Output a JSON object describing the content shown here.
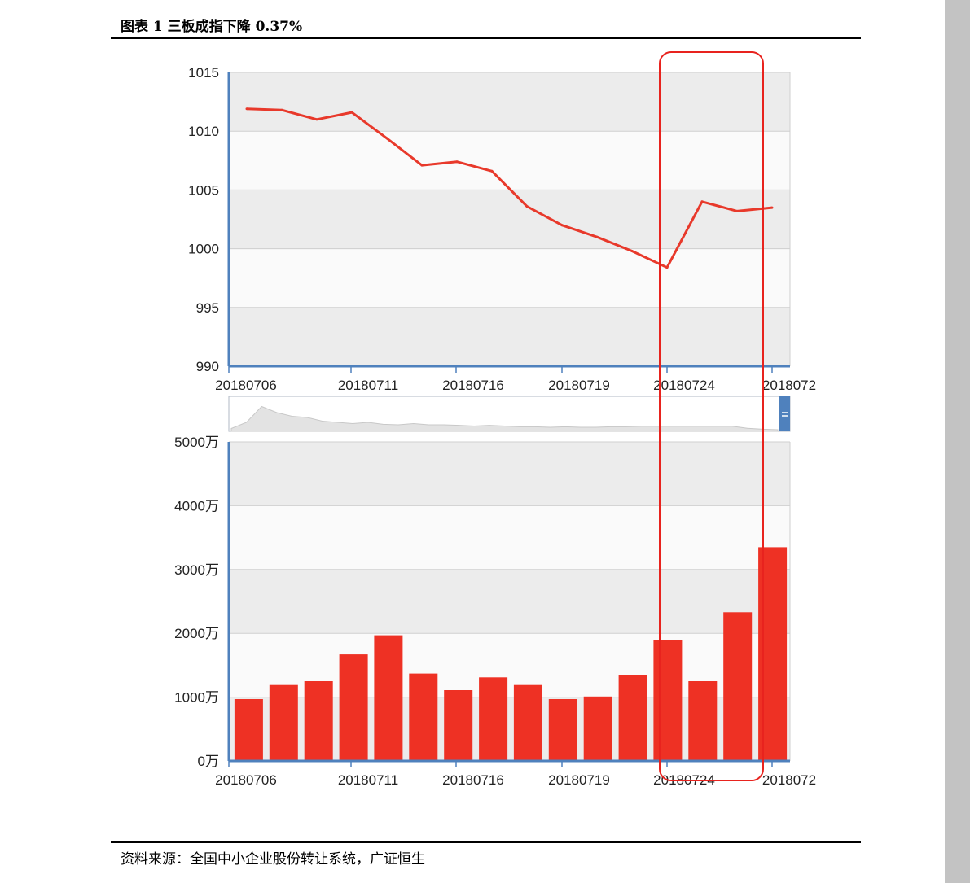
{
  "figure": {
    "title": "图表 1  三板成指下降 0.37%",
    "source": "资料来源：全国中小企业股份转让系统，广证恒生"
  },
  "colors": {
    "line": "#e8392b",
    "bar": "#ee3124",
    "axis": "#4f81bd",
    "band_dark": "#ececec",
    "band_light": "#fafafa",
    "highlight_box": "#e8231e",
    "navigator_fill": "#e3e3e3",
    "navigator_handle": "#4f81bd"
  },
  "chart_data": [
    {
      "type": "line",
      "title": "",
      "xlabel": "",
      "ylabel": "",
      "ylim": [
        990,
        1015
      ],
      "yticks": [
        "990",
        "995",
        "1000",
        "1005",
        "1010",
        "1015"
      ],
      "xticks": [
        "20180706",
        "20180711",
        "20180716",
        "20180719",
        "20180724",
        "2018072"
      ],
      "series": [
        {
          "values": [
            1011.9,
            1011.8,
            1011.0,
            1011.6,
            1009.4,
            1007.1,
            1007.4,
            1006.6,
            1003.6,
            1002.0,
            1001.0,
            999.8,
            998.4,
            1004.0,
            1003.2,
            1003.5
          ]
        }
      ],
      "grid": true,
      "legend": "none"
    },
    {
      "type": "bar",
      "title": "",
      "xlabel": "",
      "ylabel": "",
      "ylim": [
        0,
        5000
      ],
      "yticks": [
        "0万",
        "1000万",
        "2000万",
        "3000万",
        "4000万",
        "5000万"
      ],
      "xticks": [
        "20180706",
        "20180711",
        "20180716",
        "20180719",
        "20180724",
        "2018072"
      ],
      "values": [
        970,
        1190,
        1250,
        1670,
        1970,
        1370,
        1110,
        1310,
        1190,
        970,
        1010,
        1350,
        1890,
        1250,
        2330,
        3350
      ],
      "grid": true,
      "legend": "none"
    }
  ],
  "navigator": {
    "values": [
      0.05,
      0.3,
      0.95,
      0.7,
      0.55,
      0.5,
      0.35,
      0.3,
      0.25,
      0.3,
      0.22,
      0.2,
      0.25,
      0.2,
      0.2,
      0.18,
      0.15,
      0.18,
      0.15,
      0.12,
      0.12,
      0.1,
      0.12,
      0.1,
      0.1,
      0.12,
      0.12,
      0.14,
      0.14,
      0.14,
      0.14,
      0.14,
      0.14,
      0.14,
      0.06,
      0.02,
      0.0
    ],
    "handle_icon": "equals-icon"
  }
}
